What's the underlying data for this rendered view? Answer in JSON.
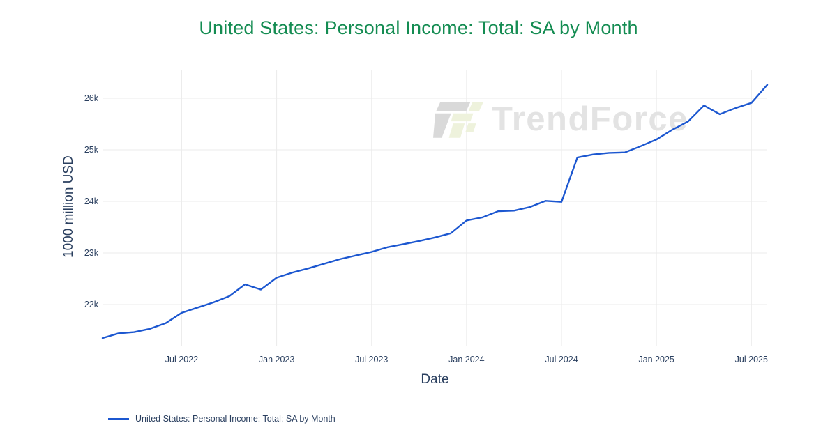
{
  "title": "United States: Personal Income: Total: SA by Month",
  "watermark": "TrendForce",
  "colors": {
    "title": "#148c52",
    "line": "#1c57d0",
    "axis_text": "#2a3f5f",
    "grid": "#ebebeb",
    "watermark_text": "#e3e3e3",
    "logo_gray": "#d9d9d9",
    "logo_green": "#eef2dc"
  },
  "chart_data": {
    "type": "line",
    "title": "United States: Personal Income: Total: SA by Month",
    "xlabel": "Date",
    "ylabel": "1000 million USD",
    "x": [
      "2022-02",
      "2022-03",
      "2022-04",
      "2022-05",
      "2022-06",
      "2022-07",
      "2022-08",
      "2022-09",
      "2022-10",
      "2022-11",
      "2022-12",
      "2023-01",
      "2023-02",
      "2023-03",
      "2023-04",
      "2023-05",
      "2023-06",
      "2023-07",
      "2023-08",
      "2023-09",
      "2023-10",
      "2023-11",
      "2023-12",
      "2024-01",
      "2024-02",
      "2024-03",
      "2024-04",
      "2024-05",
      "2024-06",
      "2024-07",
      "2024-08",
      "2024-09",
      "2024-10",
      "2024-11",
      "2024-12",
      "2025-01",
      "2025-02",
      "2025-03",
      "2025-04",
      "2025-05",
      "2025-06",
      "2025-07",
      "2025-08"
    ],
    "series": [
      {
        "name": "United States: Personal Income: Total: SA by Month",
        "color": "#1c57d0",
        "values": [
          21350,
          21440,
          21465,
          21530,
          21640,
          21840,
          21940,
          22040,
          22160,
          22390,
          22290,
          22520,
          22620,
          22700,
          22790,
          22880,
          22950,
          23020,
          23110,
          23170,
          23230,
          23300,
          23380,
          23630,
          23690,
          23810,
          23820,
          23890,
          24010,
          23990,
          24850,
          24910,
          24940,
          24950,
          25070,
          25200,
          25390,
          25550,
          25860,
          25690,
          25810,
          25910,
          26260
        ]
      }
    ],
    "x_ticks": [
      {
        "label": "Jul 2022",
        "month": "2022-07"
      },
      {
        "label": "Jan 2023",
        "month": "2023-01"
      },
      {
        "label": "Jul 2023",
        "month": "2023-07"
      },
      {
        "label": "Jan 2024",
        "month": "2024-01"
      },
      {
        "label": "Jul 2024",
        "month": "2024-07"
      },
      {
        "label": "Jan 2025",
        "month": "2025-01"
      },
      {
        "label": "Jul 2025",
        "month": "2025-07"
      }
    ],
    "y_ticks": [
      {
        "label": "22k",
        "value": 22000
      },
      {
        "label": "23k",
        "value": 23000
      },
      {
        "label": "24k",
        "value": 24000
      },
      {
        "label": "25k",
        "value": 25000
      },
      {
        "label": "26k",
        "value": 26000
      }
    ],
    "ylim": [
      21190,
      26550
    ],
    "grid": true,
    "legend_position": "bottom-left"
  },
  "legend": {
    "items": [
      {
        "label": "United States: Personal Income: Total: SA by Month",
        "color": "#1c57d0"
      }
    ]
  }
}
